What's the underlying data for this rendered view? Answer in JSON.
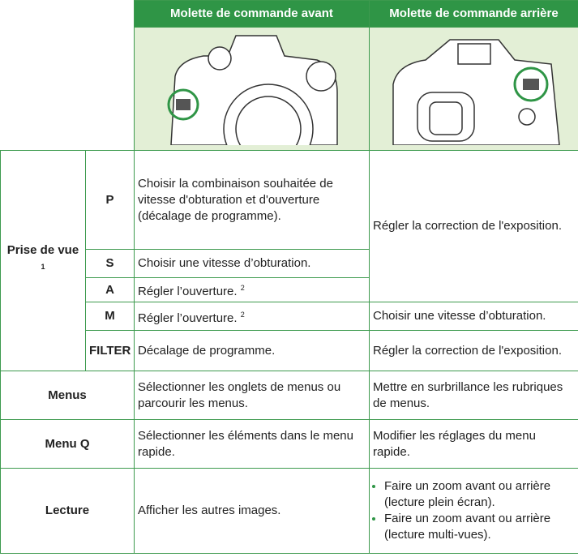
{
  "table": {
    "columns": [
      "Molette de commande avant",
      "Molette de commande arrière"
    ],
    "shooting": {
      "label": "Prise de vue",
      "note": "1",
      "rows": [
        {
          "mode": "P",
          "front": "Choisir la combinaison souhaitée de vitesse d'obturation et d'ouverture (décalage de programme)."
        },
        {
          "mode": "S",
          "front": "Choisir une vitesse d’obturation."
        },
        {
          "mode": "A",
          "front": "Régler l’ouverture.",
          "note": "2"
        },
        {
          "mode": "M",
          "front": "Régler l’ouverture.",
          "note": "2",
          "rear": "Choisir une vitesse d’obturation."
        },
        {
          "mode": "FILTER",
          "front": "Décalage de programme.",
          "rear": "Régler la correction de l'exposition."
        }
      ],
      "rear_psa": "Régler la correction de l'exposition."
    },
    "menus": {
      "label": "Menus",
      "front": "Sélectionner les onglets de menus ou parcourir les menus.",
      "rear": "Mettre en surbrillance les rubriques de menus."
    },
    "menu_q": {
      "label": "Menu Q",
      "front": "Sélectionner les éléments dans le menu rapide.",
      "rear": "Modifier les réglages du menu rapide."
    },
    "playback": {
      "label": "Lecture",
      "front": "Afficher les autres images.",
      "rear": [
        "Faire un zoom avant ou arrière (lecture plein écran).",
        "Faire un zoom avant ou arrière (lecture multi-vues)."
      ]
    }
  }
}
